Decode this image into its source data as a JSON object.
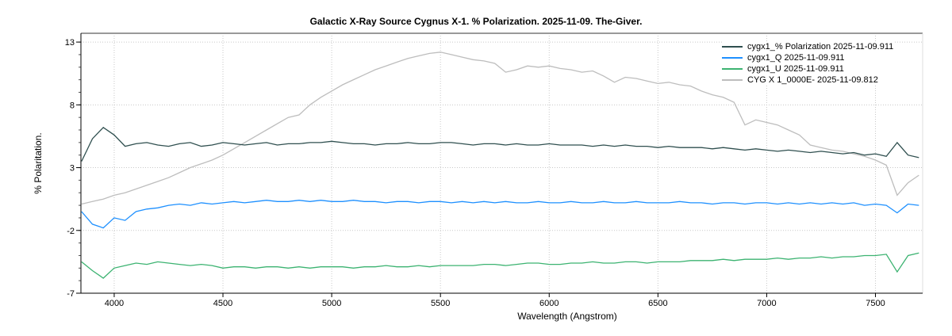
{
  "chart_data": {
    "type": "line",
    "title": "Galactic X-Ray Source Cygnus X-1. % Polarization.  2025-11-09.  The-Giver.",
    "xlabel": "Wavelength (Angstrom)",
    "ylabel": "% Polaritation.",
    "xlim": [
      3847,
      7717
    ],
    "ylim": [
      -7,
      13.7
    ],
    "xticks": [
      4000,
      4500,
      5000,
      5500,
      6000,
      6500,
      7000,
      7500
    ],
    "yticks": [
      13,
      8,
      3,
      -2,
      -7
    ],
    "grid": true,
    "legend_position": "top-right",
    "x": [
      3850,
      3900,
      3950,
      4000,
      4050,
      4100,
      4150,
      4200,
      4250,
      4300,
      4350,
      4400,
      4450,
      4500,
      4550,
      4600,
      4650,
      4700,
      4750,
      4800,
      4850,
      4900,
      4950,
      5000,
      5050,
      5100,
      5150,
      5200,
      5250,
      5300,
      5350,
      5400,
      5450,
      5500,
      5550,
      5600,
      5650,
      5700,
      5750,
      5800,
      5850,
      5900,
      5950,
      6000,
      6050,
      6100,
      6150,
      6200,
      6250,
      6300,
      6350,
      6400,
      6450,
      6500,
      6550,
      6600,
      6650,
      6700,
      6750,
      6800,
      6850,
      6900,
      6950,
      7000,
      7050,
      7100,
      7150,
      7200,
      7250,
      7300,
      7350,
      7400,
      7450,
      7500,
      7550,
      7600,
      7650,
      7700
    ],
    "series": [
      {
        "name": "CYG X 1_0000E-  2025-11-09.812",
        "color": "#bdbdbd",
        "values": [
          0.1,
          0.3,
          0.5,
          0.8,
          1.0,
          1.3,
          1.6,
          1.9,
          2.2,
          2.6,
          3.0,
          3.3,
          3.6,
          4.0,
          4.5,
          5.0,
          5.5,
          6.0,
          6.5,
          7.0,
          7.2,
          8.0,
          8.6,
          9.1,
          9.6,
          10.0,
          10.4,
          10.8,
          11.1,
          11.4,
          11.7,
          11.9,
          12.1,
          12.2,
          12.0,
          11.8,
          11.6,
          11.5,
          11.3,
          10.6,
          10.8,
          11.1,
          11.0,
          11.1,
          10.9,
          10.8,
          10.6,
          10.7,
          10.3,
          9.8,
          10.2,
          10.1,
          9.9,
          9.7,
          9.8,
          9.6,
          9.5,
          9.1,
          8.8,
          8.6,
          8.2,
          6.4,
          6.8,
          6.6,
          6.4,
          6.0,
          5.6,
          4.8,
          4.6,
          4.4,
          4.3,
          4.1,
          3.9,
          3.6,
          3.2,
          0.8,
          1.8,
          2.4
        ]
      },
      {
        "name": "cygx1_% Polarization  2025-11-09.911",
        "color": "#2f4f4f",
        "values": [
          3.5,
          5.3,
          6.2,
          5.6,
          4.7,
          4.9,
          5.0,
          4.8,
          4.7,
          4.9,
          5.0,
          4.7,
          4.8,
          5.0,
          4.9,
          4.8,
          4.9,
          5.0,
          4.8,
          4.9,
          4.9,
          5.0,
          5.0,
          5.1,
          5.0,
          4.9,
          4.9,
          4.8,
          4.9,
          4.9,
          5.0,
          4.9,
          4.9,
          5.0,
          5.0,
          4.9,
          4.8,
          4.9,
          4.9,
          4.8,
          4.9,
          4.8,
          4.8,
          4.9,
          4.8,
          4.8,
          4.8,
          4.7,
          4.8,
          4.7,
          4.8,
          4.7,
          4.7,
          4.6,
          4.7,
          4.6,
          4.6,
          4.6,
          4.5,
          4.6,
          4.5,
          4.4,
          4.5,
          4.4,
          4.3,
          4.4,
          4.3,
          4.2,
          4.3,
          4.2,
          4.1,
          4.2,
          4.0,
          4.1,
          3.9,
          5.0,
          4.0,
          3.8
        ]
      },
      {
        "name": "cygx1_Q  2025-11-09.911",
        "color": "#1e90ff",
        "values": [
          -0.5,
          -1.5,
          -1.8,
          -1.0,
          -1.2,
          -0.5,
          -0.3,
          -0.2,
          0.0,
          0.1,
          0.0,
          0.2,
          0.1,
          0.2,
          0.3,
          0.2,
          0.3,
          0.4,
          0.3,
          0.3,
          0.4,
          0.3,
          0.4,
          0.3,
          0.3,
          0.4,
          0.3,
          0.3,
          0.2,
          0.3,
          0.3,
          0.2,
          0.3,
          0.3,
          0.2,
          0.3,
          0.2,
          0.3,
          0.2,
          0.3,
          0.2,
          0.2,
          0.3,
          0.2,
          0.2,
          0.3,
          0.2,
          0.2,
          0.3,
          0.2,
          0.2,
          0.3,
          0.2,
          0.2,
          0.2,
          0.3,
          0.2,
          0.2,
          0.1,
          0.2,
          0.2,
          0.1,
          0.2,
          0.2,
          0.1,
          0.2,
          0.1,
          0.2,
          0.1,
          0.2,
          0.1,
          0.2,
          0.0,
          0.1,
          0.0,
          -0.6,
          0.1,
          0.0
        ]
      },
      {
        "name": "cygx1_U  2025-11-09.911",
        "color": "#3cb371",
        "values": [
          -4.5,
          -5.2,
          -5.8,
          -5.0,
          -4.8,
          -4.6,
          -4.7,
          -4.5,
          -4.6,
          -4.7,
          -4.8,
          -4.7,
          -4.8,
          -5.0,
          -4.9,
          -4.9,
          -5.0,
          -4.9,
          -4.9,
          -5.0,
          -4.9,
          -5.0,
          -4.9,
          -4.9,
          -4.9,
          -5.0,
          -4.9,
          -4.9,
          -4.8,
          -4.9,
          -4.9,
          -4.8,
          -4.9,
          -4.8,
          -4.8,
          -4.8,
          -4.8,
          -4.7,
          -4.7,
          -4.8,
          -4.7,
          -4.6,
          -4.6,
          -4.7,
          -4.7,
          -4.6,
          -4.6,
          -4.5,
          -4.6,
          -4.6,
          -4.5,
          -4.5,
          -4.6,
          -4.5,
          -4.5,
          -4.5,
          -4.4,
          -4.4,
          -4.4,
          -4.3,
          -4.4,
          -4.3,
          -4.3,
          -4.3,
          -4.2,
          -4.3,
          -4.2,
          -4.2,
          -4.1,
          -4.2,
          -4.1,
          -4.1,
          -4.0,
          -4.0,
          -3.9,
          -5.3,
          -4.0,
          -3.8
        ]
      }
    ],
    "legend_order": [
      1,
      2,
      3,
      0
    ]
  }
}
